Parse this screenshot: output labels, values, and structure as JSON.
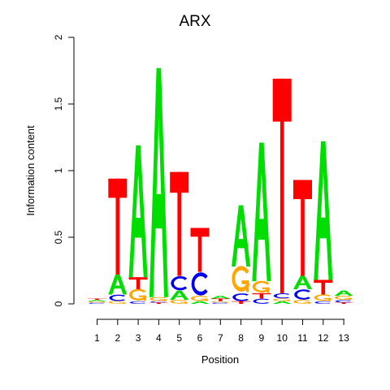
{
  "chart_data": {
    "type": "sequence-logo",
    "title": "ARX",
    "xlabel": "Position",
    "ylabel": "Information content",
    "ylim": [
      0,
      2
    ],
    "yticks": [
      "0",
      "0.5",
      "1",
      "1.5",
      "2"
    ],
    "positions": [
      "1",
      "2",
      "3",
      "4",
      "5",
      "6",
      "7",
      "8",
      "9",
      "10",
      "11",
      "12",
      "13"
    ],
    "colors": {
      "A": "#00dd00",
      "C": "#0000ee",
      "G": "#ffa500",
      "T": "#ff0000"
    },
    "stacks": [
      [
        {
          "base": "C",
          "height": 0.01
        },
        {
          "base": "G",
          "height": 0.01
        },
        {
          "base": "A",
          "height": 0.01
        },
        {
          "base": "T",
          "height": 0.01
        }
      ],
      [
        {
          "base": "G",
          "height": 0.02
        },
        {
          "base": "C",
          "height": 0.05
        },
        {
          "base": "A",
          "height": 0.15
        },
        {
          "base": "T",
          "height": 0.72
        }
      ],
      [
        {
          "base": "C",
          "height": 0.02
        },
        {
          "base": "G",
          "height": 0.09
        },
        {
          "base": "T",
          "height": 0.09
        },
        {
          "base": "A",
          "height": 0.99
        }
      ],
      [
        {
          "base": "T",
          "height": 0.01
        },
        {
          "base": "C",
          "height": 0.01
        },
        {
          "base": "G",
          "height": 0.03
        },
        {
          "base": "A",
          "height": 1.72
        }
      ],
      [
        {
          "base": "G",
          "height": 0.03
        },
        {
          "base": "A",
          "height": 0.07
        },
        {
          "base": "C",
          "height": 0.11
        },
        {
          "base": "T",
          "height": 0.78
        }
      ],
      [
        {
          "base": "A",
          "height": 0.02
        },
        {
          "base": "G",
          "height": 0.04
        },
        {
          "base": "C",
          "height": 0.18
        },
        {
          "base": "T",
          "height": 0.33
        }
      ],
      [
        {
          "base": "C",
          "height": 0.01
        },
        {
          "base": "G",
          "height": 0.01
        },
        {
          "base": "T",
          "height": 0.02
        },
        {
          "base": "A",
          "height": 0.02
        }
      ],
      [
        {
          "base": "T",
          "height": 0.02
        },
        {
          "base": "C",
          "height": 0.06
        },
        {
          "base": "G",
          "height": 0.2
        },
        {
          "base": "A",
          "height": 0.46
        }
      ],
      [
        {
          "base": "C",
          "height": 0.04
        },
        {
          "base": "T",
          "height": 0.04
        },
        {
          "base": "G",
          "height": 0.09
        },
        {
          "base": "A",
          "height": 1.04
        }
      ],
      [
        {
          "base": "A",
          "height": 0.02
        },
        {
          "base": "G",
          "height": 0.02
        },
        {
          "base": "C",
          "height": 0.04
        },
        {
          "base": "T",
          "height": 1.61
        }
      ],
      [
        {
          "base": "G",
          "height": 0.03
        },
        {
          "base": "C",
          "height": 0.08
        },
        {
          "base": "A",
          "height": 0.1
        },
        {
          "base": "T",
          "height": 0.72
        }
      ],
      [
        {
          "base": "C",
          "height": 0.02
        },
        {
          "base": "G",
          "height": 0.05
        },
        {
          "base": "T",
          "height": 0.11
        },
        {
          "base": "A",
          "height": 1.04
        }
      ],
      [
        {
          "base": "T",
          "height": 0.01
        },
        {
          "base": "C",
          "height": 0.02
        },
        {
          "base": "G",
          "height": 0.03
        },
        {
          "base": "A",
          "height": 0.04
        }
      ]
    ]
  }
}
